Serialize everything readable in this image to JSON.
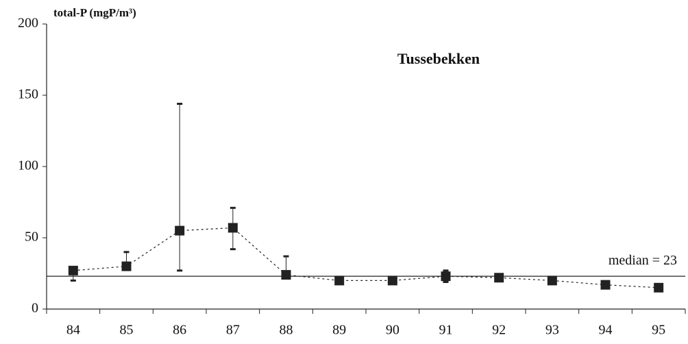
{
  "chart_data": {
    "type": "line",
    "title": "Tussebekken",
    "ylabel": "total-P (mgP/m³)",
    "categories": [
      "84",
      "85",
      "86",
      "87",
      "88",
      "89",
      "90",
      "91",
      "92",
      "93",
      "94",
      "95"
    ],
    "values": [
      27,
      30,
      55,
      57,
      24,
      20,
      20,
      23,
      22,
      20,
      17,
      15
    ],
    "min": [
      20,
      29,
      27,
      42,
      23,
      null,
      null,
      19,
      null,
      null,
      null,
      null
    ],
    "max": [
      28,
      40,
      144,
      71,
      37,
      null,
      21,
      27,
      null,
      22,
      null,
      null
    ],
    "color": "#222",
    "ylim": [
      0,
      200
    ],
    "yticks": [
      0,
      50,
      100,
      150,
      200
    ],
    "median": 23,
    "median_label": "median = 23"
  }
}
